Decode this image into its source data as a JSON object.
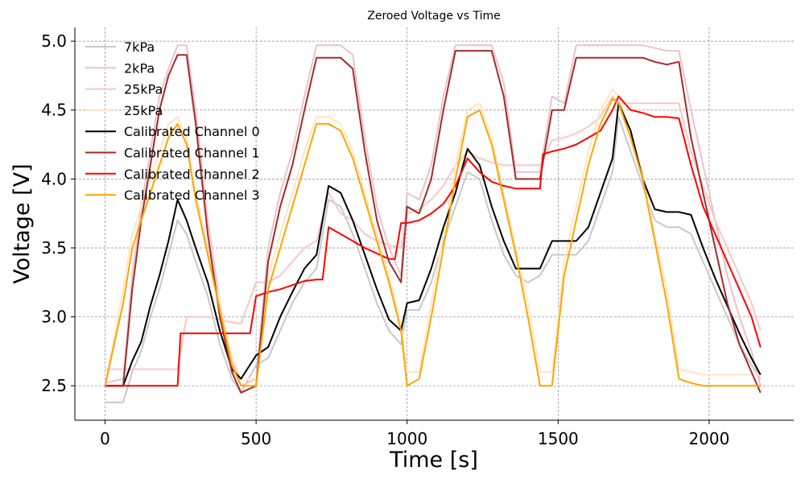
{
  "chart_data": {
    "type": "line",
    "title": "Zeroed Voltage vs Time",
    "xlabel": "Time [s]",
    "ylabel": "Voltage [V]",
    "xlim": [
      -100,
      2280
    ],
    "ylim": [
      2.25,
      5.1
    ],
    "xticks": [
      0,
      500,
      1000,
      1500,
      2000
    ],
    "xtick_labels": [
      "0",
      "500",
      "1000",
      "1500",
      "2000"
    ],
    "yticks": [
      2.5,
      3.0,
      3.5,
      4.0,
      4.5,
      5.0
    ],
    "ytick_labels": [
      "2.5",
      "3.0",
      "3.5",
      "4.0",
      "4.5",
      "5.0"
    ],
    "grid": true,
    "legend_position": "top-left",
    "series": [
      {
        "name": "7kPa",
        "color": "#c8c8c8",
        "x": [
          0,
          60,
          90,
          120,
          150,
          180,
          210,
          240,
          270,
          300,
          340,
          380,
          420,
          450,
          500,
          540,
          580,
          620,
          660,
          700,
          740,
          780,
          820,
          860,
          900,
          940,
          980,
          1000,
          1040,
          1080,
          1120,
          1160,
          1200,
          1240,
          1280,
          1320,
          1360,
          1400,
          1440,
          1480,
          1520,
          1560,
          1600,
          1640,
          1680,
          1700,
          1740,
          1780,
          1820,
          1860,
          1900,
          1940,
          1980,
          2020,
          2060,
          2100,
          2140,
          2170
        ],
        "y": [
          2.38,
          2.38,
          2.6,
          2.75,
          3.0,
          3.2,
          3.45,
          3.7,
          3.6,
          3.4,
          3.15,
          2.8,
          2.55,
          2.45,
          2.65,
          2.7,
          2.9,
          3.1,
          3.25,
          3.35,
          3.85,
          3.8,
          3.6,
          3.35,
          3.1,
          2.9,
          2.8,
          3.05,
          3.05,
          3.25,
          3.55,
          3.8,
          4.05,
          4.0,
          3.7,
          3.45,
          3.3,
          3.25,
          3.3,
          3.45,
          3.45,
          3.45,
          3.55,
          3.8,
          4.05,
          4.45,
          4.2,
          3.95,
          3.7,
          3.65,
          3.65,
          3.6,
          3.4,
          3.2,
          3.0,
          2.8,
          2.65,
          2.55
        ]
      },
      {
        "name": "2kPa",
        "color": "#e8c4c8",
        "x": [
          0,
          60,
          90,
          120,
          150,
          180,
          210,
          240,
          270,
          300,
          340,
          380,
          420,
          450,
          500,
          540,
          580,
          620,
          660,
          700,
          740,
          780,
          820,
          860,
          900,
          940,
          980,
          1000,
          1040,
          1080,
          1120,
          1160,
          1200,
          1240,
          1280,
          1320,
          1360,
          1400,
          1440,
          1480,
          1520,
          1560,
          1600,
          1640,
          1680,
          1700,
          1740,
          1780,
          1820,
          1860,
          1900,
          1940,
          1980,
          2020,
          2060,
          2100,
          2140,
          2170
        ],
        "y": [
          2.52,
          2.55,
          3.3,
          3.8,
          4.2,
          4.6,
          4.8,
          4.97,
          4.97,
          4.5,
          3.7,
          3.1,
          2.7,
          2.5,
          2.55,
          3.5,
          3.9,
          4.2,
          4.6,
          4.97,
          4.97,
          4.97,
          4.9,
          4.3,
          3.8,
          3.5,
          3.3,
          3.9,
          3.85,
          4.1,
          4.6,
          4.97,
          4.97,
          4.97,
          4.97,
          4.7,
          4.05,
          4.05,
          4.05,
          4.6,
          4.55,
          4.97,
          4.97,
          4.97,
          4.97,
          4.97,
          4.97,
          4.97,
          4.95,
          4.93,
          4.93,
          4.5,
          4.1,
          3.7,
          3.3,
          3.0,
          2.75,
          2.5
        ]
      },
      {
        "name": "25kPa",
        "color": "#f7c8c4",
        "x": [
          0,
          60,
          90,
          120,
          150,
          180,
          210,
          240,
          270,
          300,
          340,
          380,
          420,
          450,
          500,
          540,
          580,
          620,
          660,
          700,
          740,
          780,
          820,
          860,
          900,
          940,
          980,
          1000,
          1040,
          1080,
          1120,
          1160,
          1200,
          1240,
          1280,
          1320,
          1360,
          1400,
          1440,
          1480,
          1520,
          1560,
          1600,
          1640,
          1680,
          1700,
          1740,
          1780,
          1820,
          1860,
          1900,
          1940,
          1980,
          2020,
          2060,
          2100,
          2140,
          2170
        ],
        "y": [
          2.62,
          2.62,
          2.62,
          2.62,
          2.62,
          2.62,
          2.62,
          2.62,
          3.0,
          3.0,
          3.0,
          2.98,
          2.96,
          2.95,
          3.25,
          3.25,
          3.3,
          3.4,
          3.5,
          3.55,
          3.9,
          3.75,
          3.7,
          3.6,
          3.55,
          3.52,
          3.5,
          3.75,
          3.78,
          3.85,
          3.95,
          4.1,
          4.2,
          4.15,
          4.12,
          4.1,
          4.1,
          4.1,
          4.1,
          4.28,
          4.3,
          4.33,
          4.38,
          4.45,
          4.6,
          4.55,
          4.55,
          4.55,
          4.55,
          4.55,
          4.55,
          4.2,
          3.95,
          3.7,
          3.5,
          3.3,
          3.1,
          2.9
        ]
      },
      {
        "name": "25kPa",
        "color": "#fde6c4",
        "x": [
          0,
          60,
          90,
          120,
          150,
          180,
          210,
          240,
          270,
          300,
          340,
          380,
          420,
          450,
          500,
          540,
          580,
          620,
          660,
          700,
          740,
          780,
          820,
          860,
          900,
          940,
          980,
          1000,
          1040,
          1080,
          1120,
          1160,
          1200,
          1240,
          1280,
          1320,
          1360,
          1400,
          1440,
          1480,
          1520,
          1560,
          1600,
          1640,
          1680,
          1700,
          1740,
          1780,
          1820,
          1860,
          1900,
          1940,
          1980,
          2020,
          2060,
          2100,
          2140,
          2170
        ],
        "y": [
          2.5,
          3.2,
          3.6,
          3.8,
          4.0,
          4.2,
          4.4,
          4.45,
          4.3,
          3.9,
          3.5,
          3.1,
          2.7,
          2.55,
          2.55,
          3.3,
          3.6,
          3.9,
          4.2,
          4.45,
          4.45,
          4.4,
          4.2,
          3.9,
          3.6,
          3.3,
          2.95,
          2.6,
          2.6,
          3.1,
          3.6,
          4.1,
          4.5,
          4.55,
          4.3,
          3.9,
          3.5,
          3.1,
          2.6,
          2.6,
          3.4,
          3.8,
          4.2,
          4.5,
          4.65,
          4.6,
          4.35,
          4.05,
          3.6,
          3.2,
          2.62,
          2.6,
          2.58,
          2.58,
          2.58,
          2.58,
          2.58,
          2.58
        ]
      },
      {
        "name": "Calibrated Channel 0",
        "color": "#000000",
        "x": [
          0,
          60,
          90,
          120,
          150,
          180,
          210,
          240,
          270,
          300,
          340,
          380,
          420,
          450,
          500,
          540,
          580,
          620,
          660,
          700,
          740,
          780,
          820,
          860,
          900,
          940,
          980,
          1000,
          1040,
          1080,
          1120,
          1160,
          1200,
          1240,
          1280,
          1320,
          1360,
          1400,
          1440,
          1480,
          1520,
          1560,
          1600,
          1640,
          1680,
          1700,
          1740,
          1780,
          1820,
          1860,
          1900,
          1940,
          1980,
          2020,
          2060,
          2100,
          2140,
          2170
        ],
        "y": [
          2.5,
          2.5,
          2.68,
          2.82,
          3.08,
          3.3,
          3.55,
          3.85,
          3.7,
          3.5,
          3.25,
          2.9,
          2.62,
          2.55,
          2.72,
          2.78,
          3.0,
          3.18,
          3.35,
          3.45,
          3.95,
          3.9,
          3.7,
          3.45,
          3.2,
          2.98,
          2.9,
          3.1,
          3.12,
          3.35,
          3.65,
          3.9,
          4.22,
          4.1,
          3.8,
          3.55,
          3.35,
          3.35,
          3.35,
          3.55,
          3.55,
          3.55,
          3.65,
          3.9,
          4.15,
          4.55,
          4.35,
          4.0,
          3.78,
          3.76,
          3.76,
          3.74,
          3.5,
          3.28,
          3.08,
          2.88,
          2.7,
          2.58
        ]
      },
      {
        "name": "Calibrated Channel 1",
        "color": "#a52a2a",
        "x": [
          0,
          60,
          90,
          120,
          150,
          180,
          210,
          240,
          270,
          300,
          340,
          380,
          420,
          450,
          500,
          540,
          580,
          620,
          660,
          700,
          740,
          780,
          820,
          860,
          900,
          940,
          980,
          1000,
          1040,
          1080,
          1120,
          1160,
          1200,
          1240,
          1280,
          1320,
          1360,
          1400,
          1440,
          1480,
          1520,
          1560,
          1600,
          1640,
          1680,
          1700,
          1740,
          1780,
          1820,
          1860,
          1900,
          1940,
          1980,
          2020,
          2060,
          2100,
          2140,
          2170
        ],
        "y": [
          2.5,
          2.5,
          3.2,
          3.7,
          4.1,
          4.5,
          4.75,
          4.9,
          4.9,
          4.4,
          3.6,
          3.0,
          2.6,
          2.45,
          2.5,
          3.4,
          3.8,
          4.1,
          4.5,
          4.88,
          4.88,
          4.88,
          4.8,
          4.2,
          3.7,
          3.4,
          3.25,
          3.8,
          3.75,
          4.0,
          4.5,
          4.93,
          4.93,
          4.93,
          4.93,
          4.6,
          4.0,
          4.0,
          4.0,
          4.5,
          4.5,
          4.88,
          4.88,
          4.88,
          4.88,
          4.88,
          4.88,
          4.88,
          4.85,
          4.83,
          4.85,
          4.3,
          3.9,
          3.5,
          3.1,
          2.8,
          2.6,
          2.45
        ]
      },
      {
        "name": "Calibrated Channel 2",
        "color": "#ff0000",
        "x": [
          0,
          60,
          90,
          120,
          150,
          180,
          210,
          240,
          250,
          270,
          300,
          340,
          380,
          420,
          450,
          480,
          500,
          540,
          580,
          620,
          660,
          700,
          720,
          740,
          780,
          820,
          860,
          900,
          940,
          960,
          980,
          1000,
          1040,
          1080,
          1120,
          1160,
          1200,
          1240,
          1280,
          1320,
          1360,
          1400,
          1440,
          1450,
          1480,
          1520,
          1560,
          1600,
          1640,
          1680,
          1700,
          1740,
          1780,
          1820,
          1860,
          1900,
          1940,
          1980,
          2020,
          2060,
          2100,
          2140,
          2170
        ],
        "y": [
          2.5,
          2.5,
          2.5,
          2.5,
          2.5,
          2.5,
          2.5,
          2.5,
          2.88,
          2.88,
          2.88,
          2.88,
          2.88,
          2.88,
          2.88,
          2.88,
          3.15,
          3.18,
          3.2,
          3.23,
          3.26,
          3.27,
          3.27,
          3.65,
          3.6,
          3.55,
          3.5,
          3.46,
          3.42,
          3.42,
          3.68,
          3.68,
          3.7,
          3.75,
          3.82,
          3.95,
          4.15,
          4.05,
          3.98,
          3.95,
          3.93,
          3.93,
          3.93,
          4.18,
          4.2,
          4.22,
          4.25,
          4.3,
          4.35,
          4.5,
          4.6,
          4.5,
          4.48,
          4.45,
          4.45,
          4.44,
          4.1,
          3.8,
          3.6,
          3.4,
          3.2,
          3.0,
          2.78
        ]
      },
      {
        "name": "Calibrated Channel 3",
        "color": "#ffa500",
        "x": [
          0,
          60,
          90,
          120,
          150,
          180,
          210,
          240,
          270,
          300,
          340,
          380,
          420,
          450,
          500,
          540,
          580,
          620,
          660,
          700,
          740,
          780,
          820,
          860,
          900,
          940,
          980,
          1000,
          1040,
          1080,
          1120,
          1160,
          1200,
          1240,
          1280,
          1320,
          1360,
          1400,
          1440,
          1480,
          1520,
          1560,
          1600,
          1640,
          1680,
          1700,
          1740,
          1780,
          1820,
          1860,
          1900,
          1940,
          1980,
          2020,
          2060,
          2100,
          2140,
          2170
        ],
        "y": [
          2.5,
          3.1,
          3.5,
          3.7,
          3.9,
          4.1,
          4.3,
          4.4,
          4.25,
          3.85,
          3.45,
          3.05,
          2.65,
          2.5,
          2.5,
          3.2,
          3.5,
          3.8,
          4.1,
          4.4,
          4.4,
          4.35,
          4.15,
          3.85,
          3.55,
          3.25,
          2.9,
          2.5,
          2.55,
          3.0,
          3.5,
          4.0,
          4.45,
          4.5,
          4.25,
          3.85,
          3.45,
          3.0,
          2.5,
          2.5,
          3.3,
          3.7,
          4.1,
          4.4,
          4.58,
          4.55,
          4.3,
          4.0,
          3.55,
          3.1,
          2.55,
          2.52,
          2.5,
          2.5,
          2.5,
          2.5,
          2.5,
          2.5
        ]
      }
    ]
  }
}
